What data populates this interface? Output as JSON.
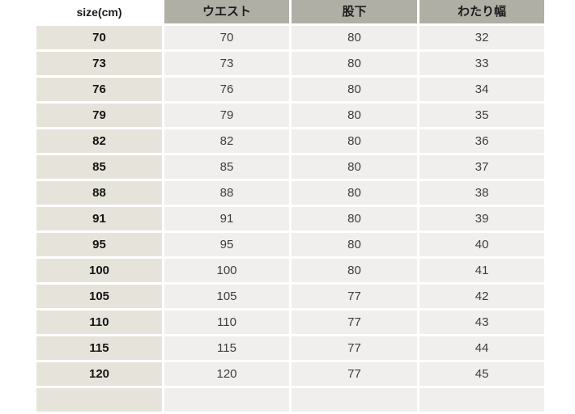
{
  "table": {
    "headers": [
      "size(cm)",
      "ウエスト",
      "股下",
      "わたり幅"
    ],
    "columns": [
      "size",
      "waist",
      "inseam",
      "watari"
    ],
    "rows": [
      [
        "70",
        "70",
        "80",
        "32"
      ],
      [
        "73",
        "73",
        "80",
        "33"
      ],
      [
        "76",
        "76",
        "80",
        "34"
      ],
      [
        "79",
        "79",
        "80",
        "35"
      ],
      [
        "82",
        "82",
        "80",
        "36"
      ],
      [
        "85",
        "85",
        "80",
        "37"
      ],
      [
        "88",
        "88",
        "80",
        "38"
      ],
      [
        "91",
        "91",
        "80",
        "39"
      ],
      [
        "95",
        "95",
        "80",
        "40"
      ],
      [
        "100",
        "100",
        "80",
        "41"
      ],
      [
        "105",
        "105",
        "77",
        "42"
      ],
      [
        "110",
        "110",
        "77",
        "43"
      ],
      [
        "115",
        "115",
        "77",
        "44"
      ],
      [
        "120",
        "120",
        "77",
        "45"
      ]
    ],
    "clipped_row": [
      "",
      "",
      "",
      ""
    ]
  },
  "colors": {
    "header_bg": "#b0afa5",
    "header_text": "#1c1c1c",
    "size_col_bg": "#e6e4da",
    "size_text": "#151515",
    "cell_bg": "#f0efed",
    "cell_text": "#3d3d3d"
  }
}
